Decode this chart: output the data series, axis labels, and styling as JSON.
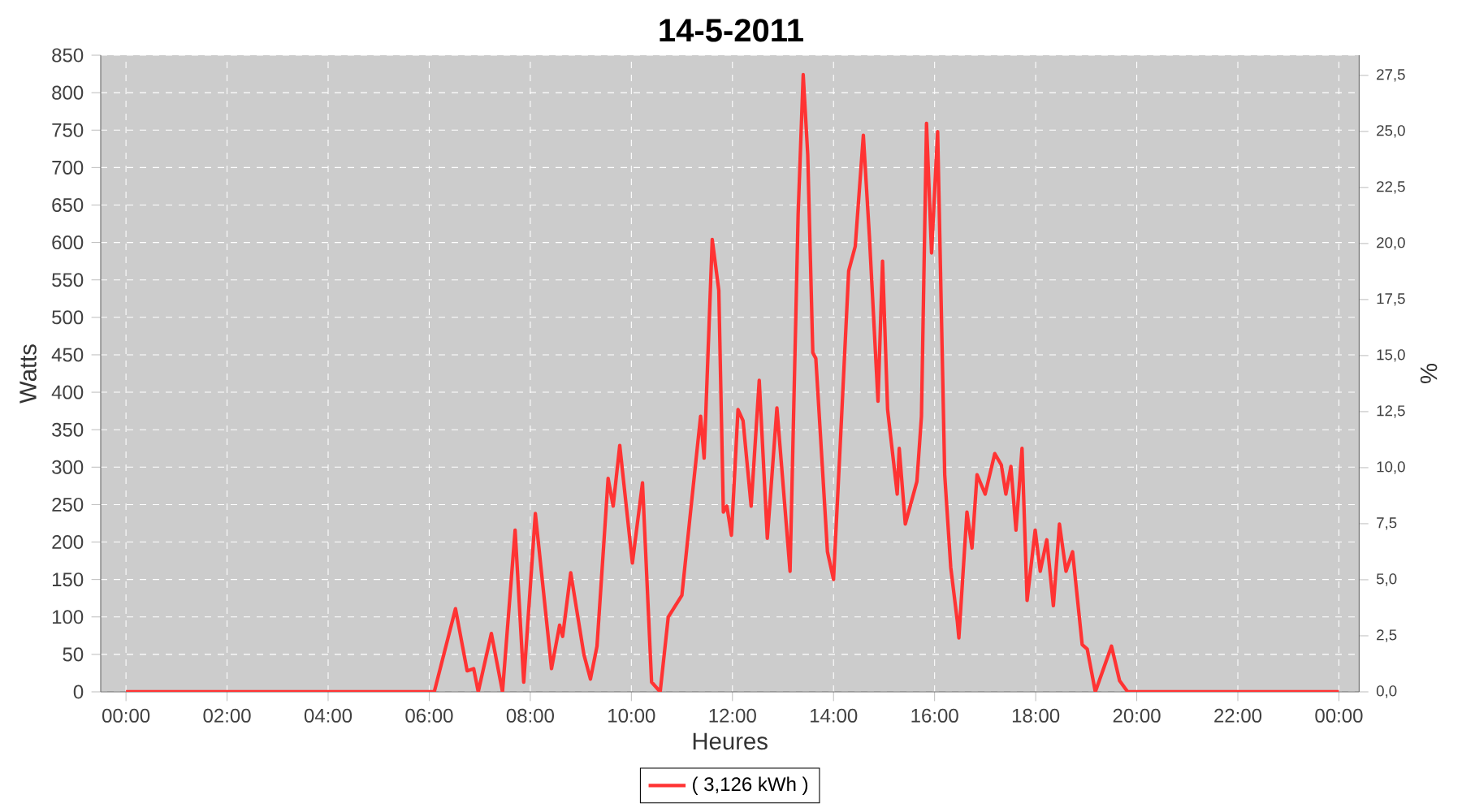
{
  "chart_data": {
    "type": "line",
    "title": "14-5-2011",
    "xlabel": "Heures",
    "ylabel": "Watts",
    "y2label": "%",
    "x": [
      0,
      6.0,
      6.1,
      6.52,
      6.75,
      6.88,
      6.97,
      7.23,
      7.45,
      7.7,
      7.87,
      8.1,
      8.42,
      8.58,
      8.64,
      8.8,
      9.06,
      9.19,
      9.32,
      9.54,
      9.64,
      9.77,
      10.02,
      10.22,
      10.4,
      10.57,
      10.73,
      11.0,
      11.2,
      11.37,
      11.44,
      11.6,
      11.73,
      11.82,
      11.89,
      11.98,
      12.11,
      12.21,
      12.37,
      12.53,
      12.69,
      12.88,
      13.14,
      13.3,
      13.4,
      13.49,
      13.59,
      13.65,
      13.88,
      14.0,
      14.14,
      14.3,
      14.43,
      14.59,
      14.71,
      14.88,
      14.97,
      15.07,
      15.26,
      15.3,
      15.42,
      15.65,
      15.74,
      15.84,
      15.94,
      16.06,
      16.2,
      16.32,
      16.45,
      16.48,
      16.64,
      16.74,
      16.84,
      17.0,
      17.19,
      17.32,
      17.41,
      17.51,
      17.61,
      17.73,
      17.83,
      17.99,
      18.09,
      18.22,
      18.35,
      18.47,
      18.6,
      18.73,
      18.92,
      19.02,
      19.18,
      19.5,
      19.66,
      19.82,
      24.0
    ],
    "series": [
      {
        "name": "( 3,126 kWh )",
        "color": "#ff3333",
        "values": [
          0,
          0,
          0,
          111,
          28,
          31,
          0,
          78,
          0,
          216,
          13,
          238,
          31,
          89,
          74,
          159,
          50,
          17,
          61,
          285,
          248,
          329,
          172,
          279,
          13,
          0,
          100,
          129,
          259,
          368,
          312,
          604,
          536,
          240,
          248,
          209,
          377,
          362,
          248,
          416,
          205,
          379,
          161,
          638,
          824,
          717,
          453,
          445,
          187,
          150,
          340,
          562,
          595,
          743,
          608,
          388,
          575,
          377,
          264,
          325,
          224,
          281,
          368,
          759,
          586,
          748,
          290,
          166,
          94,
          72,
          240,
          192,
          290,
          264,
          318,
          303,
          264,
          301,
          216,
          325,
          122,
          216,
          161,
          203,
          115,
          224,
          161,
          187,
          63,
          57,
          0,
          61,
          15,
          0,
          0
        ]
      }
    ],
    "xlim": [
      -0.5,
      24.4
    ],
    "ylim": [
      0,
      850
    ],
    "y2lim": [
      0,
      28.4
    ],
    "xticks": [
      {
        "value": 0,
        "label": "00:00"
      },
      {
        "value": 2,
        "label": "02:00"
      },
      {
        "value": 4,
        "label": "04:00"
      },
      {
        "value": 6,
        "label": "06:00"
      },
      {
        "value": 8,
        "label": "08:00"
      },
      {
        "value": 10,
        "label": "10:00"
      },
      {
        "value": 12,
        "label": "12:00"
      },
      {
        "value": 14,
        "label": "14:00"
      },
      {
        "value": 16,
        "label": "16:00"
      },
      {
        "value": 18,
        "label": "18:00"
      },
      {
        "value": 20,
        "label": "20:00"
      },
      {
        "value": 22,
        "label": "22:00"
      },
      {
        "value": 24,
        "label": "00:00"
      }
    ],
    "yticks": [
      0,
      50,
      100,
      150,
      200,
      250,
      300,
      350,
      400,
      450,
      500,
      550,
      600,
      650,
      700,
      750,
      800,
      850
    ],
    "y2ticks": [
      {
        "value": 0,
        "label": "0,0"
      },
      {
        "value": 2.5,
        "label": "2,5"
      },
      {
        "value": 5,
        "label": "5,0"
      },
      {
        "value": 7.5,
        "label": "7,5"
      },
      {
        "value": 10,
        "label": "10,0"
      },
      {
        "value": 12.5,
        "label": "12,5"
      },
      {
        "value": 15,
        "label": "15,0"
      },
      {
        "value": 17.5,
        "label": "17,5"
      },
      {
        "value": 20,
        "label": "20,0"
      },
      {
        "value": 22.5,
        "label": "22,5"
      },
      {
        "value": 25,
        "label": "25,0"
      },
      {
        "value": 27.5,
        "label": "27,5"
      }
    ],
    "grid": true,
    "legend": "bottom"
  }
}
